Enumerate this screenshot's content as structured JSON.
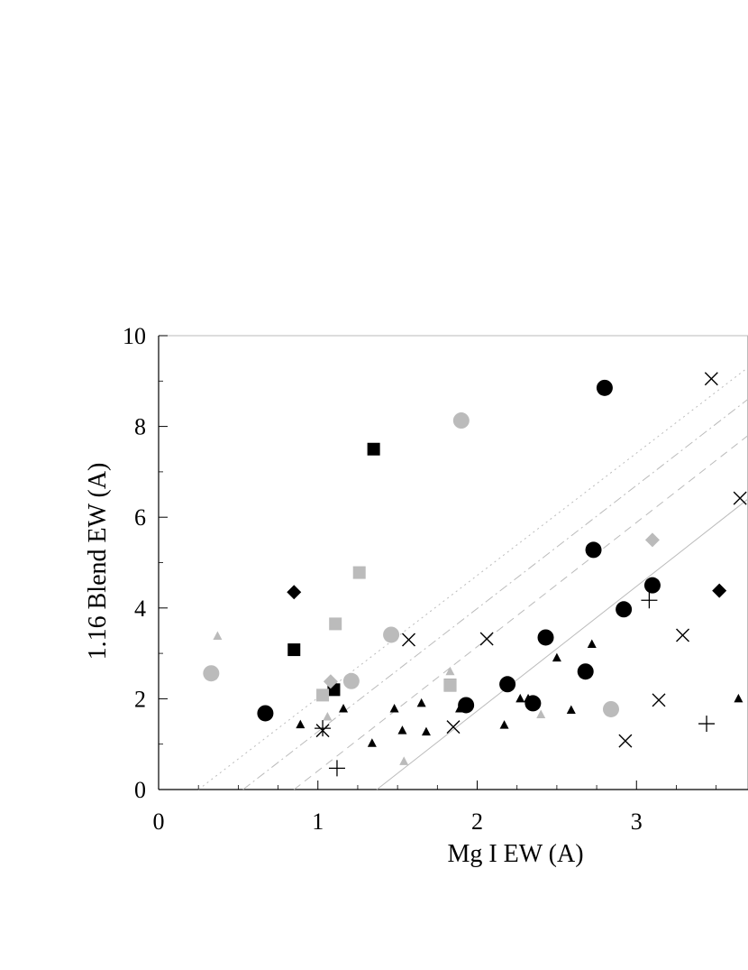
{
  "chart_data": {
    "type": "scatter",
    "title": "",
    "xlabel": "Mg I EW (A)",
    "ylabel": "1.16 Blend EW (A)",
    "xlim": [
      0,
      3.7
    ],
    "ylim": [
      0,
      10
    ],
    "xticks": [
      0,
      1,
      2,
      3
    ],
    "yticks": [
      0,
      2,
      4,
      6,
      8,
      10
    ],
    "grid": false,
    "legend": "none",
    "lines": [
      {
        "style": "solid",
        "color": "#bbbbbb",
        "x": [
          1.37,
          3.7
        ],
        "y": [
          0,
          6.4
        ]
      },
      {
        "style": "dashed",
        "color": "#bbbbbb",
        "x": [
          0.85,
          3.7
        ],
        "y": [
          0,
          7.8
        ]
      },
      {
        "style": "dashdot",
        "color": "#bbbbbb",
        "x": [
          0.53,
          3.7
        ],
        "y": [
          0,
          8.6
        ]
      },
      {
        "style": "dotted",
        "color": "#bbbbbb",
        "x": [
          0.25,
          3.7
        ],
        "y": [
          0,
          9.3
        ]
      }
    ],
    "series": [
      {
        "marker": "circle",
        "color": "#000000",
        "points": [
          [
            0.67,
            1.68
          ],
          [
            1.93,
            1.86
          ],
          [
            2.19,
            2.32
          ],
          [
            2.35,
            1.9
          ],
          [
            2.43,
            3.35
          ],
          [
            2.68,
            2.6
          ],
          [
            2.73,
            5.28
          ],
          [
            2.8,
            8.85
          ],
          [
            2.92,
            3.97
          ],
          [
            3.1,
            4.5
          ]
        ]
      },
      {
        "marker": "circle",
        "color": "#bbbbbb",
        "points": [
          [
            0.33,
            2.56
          ],
          [
            1.21,
            2.39
          ],
          [
            1.46,
            3.41
          ],
          [
            1.9,
            8.13
          ],
          [
            2.84,
            1.77
          ]
        ]
      },
      {
        "marker": "square",
        "color": "#000000",
        "points": [
          [
            0.85,
            3.08
          ],
          [
            1.1,
            2.2
          ],
          [
            1.35,
            7.5
          ],
          [
            1.83,
            2.3
          ]
        ]
      },
      {
        "marker": "square",
        "color": "#bbbbbb",
        "points": [
          [
            1.03,
            2.08
          ],
          [
            1.11,
            3.65
          ],
          [
            1.26,
            4.78
          ],
          [
            1.83,
            2.3
          ]
        ]
      },
      {
        "marker": "diamond",
        "color": "#000000",
        "points": [
          [
            0.85,
            4.35
          ],
          [
            3.52,
            4.38
          ]
        ]
      },
      {
        "marker": "diamond",
        "color": "#bbbbbb",
        "points": [
          [
            1.08,
            2.38
          ],
          [
            3.1,
            5.5
          ]
        ]
      },
      {
        "marker": "triangle",
        "color": "#000000",
        "points": [
          [
            0.89,
            1.43
          ],
          [
            1.16,
            1.78
          ],
          [
            1.34,
            1.02
          ],
          [
            1.48,
            1.78
          ],
          [
            1.53,
            1.3
          ],
          [
            1.65,
            1.9
          ],
          [
            1.68,
            1.27
          ],
          [
            1.89,
            1.78
          ],
          [
            2.17,
            1.42
          ],
          [
            2.27,
            2.0
          ],
          [
            2.32,
            2.0
          ],
          [
            2.5,
            2.9
          ],
          [
            2.59,
            1.75
          ],
          [
            2.72,
            3.2
          ],
          [
            3.64,
            2.0
          ]
        ]
      },
      {
        "marker": "triangle",
        "color": "#bbbbbb",
        "points": [
          [
            0.37,
            3.38
          ],
          [
            1.06,
            1.6
          ],
          [
            1.54,
            0.62
          ],
          [
            1.83,
            2.6
          ],
          [
            1.84,
            2.3
          ],
          [
            2.4,
            1.65
          ]
        ]
      },
      {
        "marker": "x",
        "color": "#000000",
        "points": [
          [
            1.03,
            1.3
          ],
          [
            1.57,
            3.3
          ],
          [
            1.85,
            1.38
          ],
          [
            2.06,
            3.32
          ],
          [
            2.93,
            1.07
          ],
          [
            3.14,
            1.97
          ],
          [
            3.29,
            3.4
          ],
          [
            3.47,
            9.05
          ],
          [
            3.65,
            6.42
          ]
        ]
      },
      {
        "marker": "plus",
        "color": "#000000",
        "points": [
          [
            1.03,
            1.35
          ],
          [
            1.12,
            0.47
          ],
          [
            3.08,
            4.17
          ],
          [
            3.44,
            1.45
          ]
        ]
      }
    ]
  }
}
